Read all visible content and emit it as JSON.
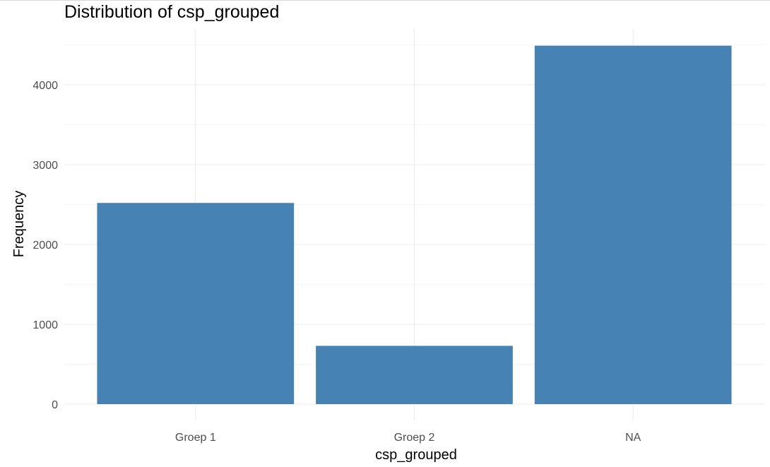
{
  "chart_data": {
    "type": "bar",
    "title": "Distribution of csp_grouped",
    "xlabel": "csp_grouped",
    "ylabel": "Frequency",
    "categories": [
      "Groep 1",
      "Groep 2",
      "NA"
    ],
    "values": [
      2520,
      730,
      4490
    ],
    "ylim": [
      0,
      4500
    ],
    "yticks": [
      0,
      1000,
      2000,
      3000,
      4000
    ],
    "ytick_labels": [
      "0",
      "1000",
      "2000",
      "3000",
      "4000"
    ],
    "bar_color": "#4682B4",
    "grid": true,
    "legend": "none"
  }
}
